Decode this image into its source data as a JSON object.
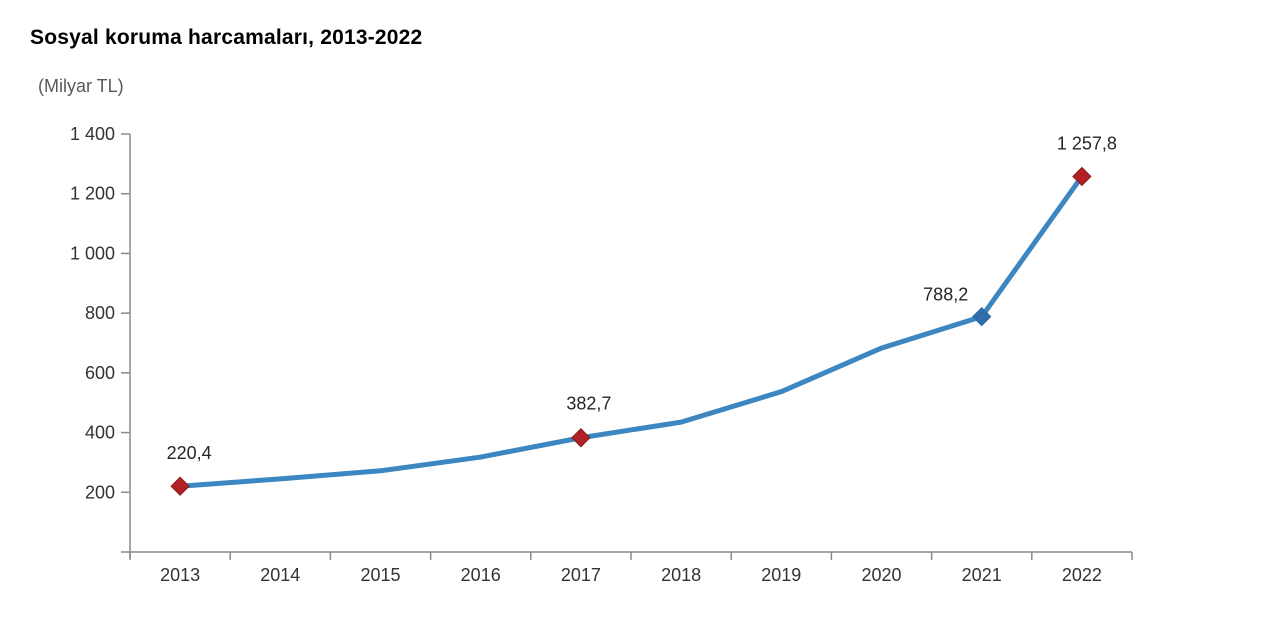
{
  "chart": {
    "title": "Sosyal koruma harcamaları, 2013-2022",
    "unit_label": "(Milyar TL)"
  },
  "chart_data": {
    "type": "line",
    "title": "Sosyal koruma harcamaları, 2013-2022",
    "ylabel": "(Milyar TL)",
    "xlabel": "",
    "categories": [
      "2013",
      "2014",
      "2015",
      "2016",
      "2017",
      "2018",
      "2019",
      "2020",
      "2021",
      "2022"
    ],
    "series": [
      {
        "name": "Sosyal koruma harcamaları (Milyar TL)",
        "values": [
          220.4,
          245,
          272,
          318,
          382.7,
          435,
          537,
          683,
          788.2,
          1257.8
        ]
      }
    ],
    "labeled_points": [
      {
        "category": "2013",
        "value": 220.4,
        "label": "220,4",
        "marker": "red"
      },
      {
        "category": "2017",
        "value": 382.7,
        "label": "382,7",
        "marker": "red"
      },
      {
        "category": "2021",
        "value": 788.2,
        "label": "788,2",
        "marker": "blue"
      },
      {
        "category": "2022",
        "value": 1257.8,
        "label": "1 257,8",
        "marker": "red"
      }
    ],
    "ylim": [
      0,
      1400
    ],
    "yticks": [
      {
        "value": 200,
        "label": "200"
      },
      {
        "value": 400,
        "label": "400"
      },
      {
        "value": 600,
        "label": "600"
      },
      {
        "value": 800,
        "label": "800"
      },
      {
        "value": 1000,
        "label": "1 000"
      },
      {
        "value": 1200,
        "label": "1 200"
      },
      {
        "value": 1400,
        "label": "1 400"
      }
    ],
    "grid": false,
    "legend": "none",
    "colors": {
      "line": "#3c87c1",
      "marker_red": "#b02025",
      "marker_red_border": "#8c1a1e",
      "marker_blue": "#2f6da9",
      "axis": "#8a8a8a",
      "tick_text": "#333333",
      "point_label_text": "#262626"
    }
  }
}
